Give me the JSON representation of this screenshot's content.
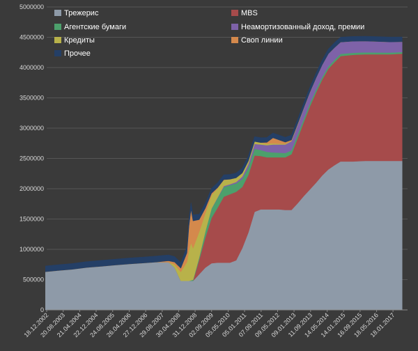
{
  "chart_data": {
    "type": "area",
    "stacked": true,
    "title": "",
    "xlabel": "",
    "ylabel": "",
    "ylim": [
      0,
      5000000
    ],
    "y_ticks": [
      "0",
      "500000",
      "1000000",
      "1500000",
      "2000000",
      "2500000",
      "3000000",
      "3500000",
      "4000000",
      "4500000",
      "5000000"
    ],
    "x_tick_labels": [
      "18.12.2002",
      "20.08.2003",
      "21.04.2004",
      "22.12.2004",
      "24.08.2005",
      "26.04.2006",
      "27.12.2006",
      "29.08.2007",
      "30.04.2008",
      "31.12.2008",
      "02.09.2009",
      "05.05.2010",
      "05.01.2011",
      "07.09.2011",
      "09.05.2012",
      "09.01.2013",
      "11.09.2013",
      "14.05.2014",
      "14.01.2015",
      "16.09.2015",
      "18.05.2016",
      "18.01.2017"
    ],
    "grid": true,
    "legend_position": "top",
    "x": [
      "2002-12",
      "2003-06",
      "2004-01",
      "2004-08",
      "2005-03",
      "2005-10",
      "2006-05",
      "2006-12",
      "2007-06",
      "2007-12",
      "2008-03",
      "2008-06",
      "2008-09",
      "2008-10",
      "2008-11",
      "2008-12",
      "2009-03",
      "2009-06",
      "2009-09",
      "2009-12",
      "2010-03",
      "2010-06",
      "2010-09",
      "2010-12",
      "2011-03",
      "2011-06",
      "2011-09",
      "2011-12",
      "2012-03",
      "2012-06",
      "2012-09",
      "2012-12",
      "2013-03",
      "2013-06",
      "2013-09",
      "2013-12",
      "2014-03",
      "2014-06",
      "2014-09",
      "2014-12",
      "2015-06",
      "2015-12",
      "2016-06",
      "2016-12",
      "2017-06"
    ],
    "series": [
      {
        "name": "Трежерис",
        "color": "#8e9aa8",
        "values": [
          630000,
          650000,
          670000,
          700000,
          720000,
          740000,
          760000,
          775000,
          790000,
          790000,
          700000,
          480000,
          480000,
          480000,
          480000,
          480000,
          590000,
          700000,
          770000,
          780000,
          780000,
          780000,
          820000,
          1020000,
          1280000,
          1620000,
          1660000,
          1660000,
          1660000,
          1660000,
          1650000,
          1650000,
          1760000,
          1880000,
          1990000,
          2100000,
          2220000,
          2320000,
          2390000,
          2450000,
          2450000,
          2460000,
          2460000,
          2460000,
          2460000
        ]
      },
      {
        "name": "MBS",
        "color": "#a64b4b",
        "values": [
          0,
          0,
          0,
          0,
          0,
          0,
          0,
          0,
          0,
          0,
          0,
          0,
          0,
          0,
          0,
          0,
          240000,
          500000,
          750000,
          910000,
          1090000,
          1130000,
          1130000,
          1010000,
          950000,
          930000,
          880000,
          860000,
          860000,
          860000,
          870000,
          920000,
          1070000,
          1220000,
          1370000,
          1490000,
          1580000,
          1660000,
          1700000,
          1740000,
          1760000,
          1760000,
          1760000,
          1760000,
          1770000
        ]
      },
      {
        "name": "Агентские бумаги",
        "color": "#4ca06c",
        "values": [
          0,
          0,
          0,
          0,
          0,
          0,
          0,
          0,
          0,
          0,
          0,
          0,
          0,
          0,
          10000,
          20000,
          40000,
          100000,
          150000,
          160000,
          160000,
          150000,
          140000,
          130000,
          120000,
          110000,
          100000,
          90000,
          80000,
          75000,
          70000,
          65000,
          60000,
          55000,
          50000,
          45000,
          42000,
          40000,
          38000,
          36000,
          34000,
          32000,
          30000,
          28000,
          26000
        ]
      },
      {
        "name": "Неамортизованный доход, премии",
        "color": "#7e62a8",
        "values": [
          0,
          0,
          0,
          0,
          0,
          0,
          0,
          0,
          0,
          0,
          0,
          0,
          0,
          0,
          0,
          0,
          0,
          0,
          5000,
          10000,
          15000,
          15000,
          20000,
          40000,
          60000,
          80000,
          90000,
          110000,
          130000,
          135000,
          140000,
          150000,
          160000,
          170000,
          180000,
          190000,
          200000,
          205000,
          200000,
          195000,
          190000,
          185000,
          180000,
          175000,
          170000
        ]
      },
      {
        "name": "Кредиты",
        "color": "#b8b24a",
        "values": [
          0,
          0,
          0,
          0,
          0,
          0,
          0,
          0,
          0,
          0,
          50000,
          150000,
          310000,
          500000,
          620000,
          520000,
          420000,
          300000,
          220000,
          150000,
          100000,
          80000,
          70000,
          60000,
          50000,
          40000,
          30000,
          25000,
          20000,
          15000,
          15000,
          10000,
          10000,
          8000,
          5000,
          3000,
          2000,
          1000,
          1000,
          0,
          0,
          0,
          0,
          0,
          0
        ]
      },
      {
        "name": "Своп линии",
        "color": "#d4894c",
        "values": [
          0,
          0,
          0,
          0,
          0,
          0,
          0,
          0,
          0,
          20000,
          40000,
          60000,
          150000,
          400000,
          550000,
          450000,
          200000,
          80000,
          30000,
          10000,
          5000,
          2000,
          0,
          0,
          0,
          0,
          2000,
          20000,
          90000,
          60000,
          25000,
          10000,
          5000,
          2000,
          0,
          0,
          0,
          0,
          0,
          0,
          0,
          0,
          0,
          0,
          0
        ]
      },
      {
        "name": "Прочее",
        "color": "#243f66",
        "values": [
          95000,
          95000,
          96000,
          96000,
          97000,
          97000,
          98000,
          98000,
          98000,
          98000,
          90000,
          90000,
          100000,
          120000,
          110000,
          100000,
          90000,
          85000,
          80000,
          80000,
          80000,
          80000,
          80000,
          80000,
          80000,
          80000,
          80000,
          80000,
          80000,
          80000,
          80000,
          80000,
          80000,
          80000,
          80000,
          80000,
          80000,
          80000,
          80000,
          80000,
          80000,
          80000,
          80000,
          80000,
          80000
        ]
      }
    ]
  }
}
